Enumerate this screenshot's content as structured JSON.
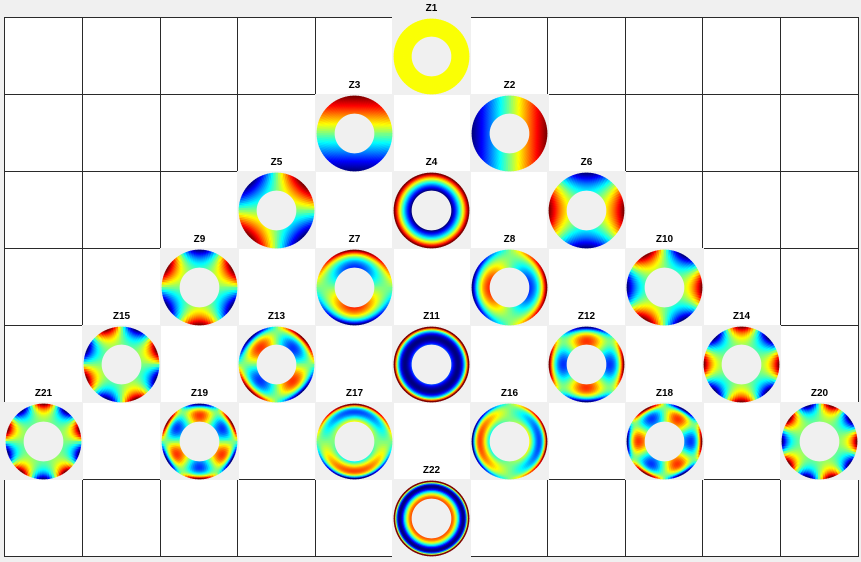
{
  "figure": {
    "background_color": "#f0f0f0",
    "cell_color": "#ffffff",
    "grid_line_color": "#2a2a2a",
    "colormap": "jet",
    "grid": {
      "rows": 7,
      "cols": 11
    },
    "panels": [
      {
        "label": "Z1",
        "row": 0,
        "col": 5,
        "n": 0,
        "m": 0
      },
      {
        "label": "Z2",
        "row": 1,
        "col": 6,
        "n": 1,
        "m": 1
      },
      {
        "label": "Z3",
        "row": 1,
        "col": 4,
        "n": 1,
        "m": -1
      },
      {
        "label": "Z4",
        "row": 2,
        "col": 5,
        "n": 2,
        "m": 0
      },
      {
        "label": "Z5",
        "row": 2,
        "col": 3,
        "n": 2,
        "m": -2
      },
      {
        "label": "Z6",
        "row": 2,
        "col": 7,
        "n": 2,
        "m": 2
      },
      {
        "label": "Z7",
        "row": 3,
        "col": 4,
        "n": 3,
        "m": -1
      },
      {
        "label": "Z8",
        "row": 3,
        "col": 6,
        "n": 3,
        "m": 1
      },
      {
        "label": "Z9",
        "row": 3,
        "col": 2,
        "n": 3,
        "m": -3
      },
      {
        "label": "Z10",
        "row": 3,
        "col": 8,
        "n": 3,
        "m": 3
      },
      {
        "label": "Z11",
        "row": 4,
        "col": 5,
        "n": 4,
        "m": 0
      },
      {
        "label": "Z12",
        "row": 4,
        "col": 7,
        "n": 4,
        "m": 2
      },
      {
        "label": "Z13",
        "row": 4,
        "col": 3,
        "n": 4,
        "m": -2
      },
      {
        "label": "Z14",
        "row": 4,
        "col": 9,
        "n": 4,
        "m": 4
      },
      {
        "label": "Z15",
        "row": 4,
        "col": 1,
        "n": 4,
        "m": -4
      },
      {
        "label": "Z16",
        "row": 5,
        "col": 6,
        "n": 5,
        "m": 1
      },
      {
        "label": "Z17",
        "row": 5,
        "col": 4,
        "n": 5,
        "m": -1
      },
      {
        "label": "Z18",
        "row": 5,
        "col": 8,
        "n": 5,
        "m": 3
      },
      {
        "label": "Z19",
        "row": 5,
        "col": 2,
        "n": 5,
        "m": -3
      },
      {
        "label": "Z20",
        "row": 5,
        "col": 10,
        "n": 5,
        "m": 5
      },
      {
        "label": "Z21",
        "row": 5,
        "col": 0,
        "n": 5,
        "m": -5
      },
      {
        "label": "Z22",
        "row": 6,
        "col": 5,
        "n": 6,
        "m": 0
      }
    ]
  }
}
